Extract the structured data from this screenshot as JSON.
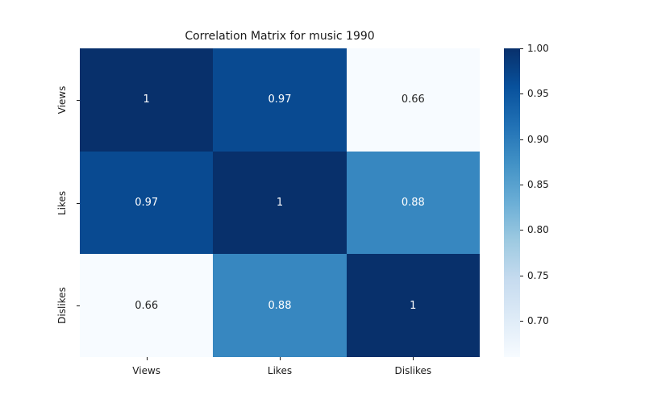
{
  "chart_data": {
    "type": "heatmap",
    "title": "Correlation Matrix for music 1990",
    "categories": [
      "Views",
      "Likes",
      "Dislikes"
    ],
    "matrix": [
      [
        1,
        0.97,
        0.66
      ],
      [
        0.97,
        1,
        0.88
      ],
      [
        0.66,
        0.88,
        1
      ]
    ],
    "cell_labels": [
      [
        "1",
        "0.97",
        "0.66"
      ],
      [
        "0.97",
        "1",
        "0.88"
      ],
      [
        "0.66",
        "0.88",
        "1"
      ]
    ],
    "cell_colors": [
      [
        "#08306b",
        "#094a91",
        "#f7fbff"
      ],
      [
        "#094a91",
        "#08306b",
        "#3787c0"
      ],
      [
        "#f7fbff",
        "#3787c0",
        "#08306b"
      ]
    ],
    "cell_text_colors": [
      [
        "#ffffff",
        "#ffffff",
        "#262626"
      ],
      [
        "#ffffff",
        "#ffffff",
        "#ffffff"
      ],
      [
        "#262626",
        "#ffffff",
        "#ffffff"
      ]
    ],
    "colormap": "Blues",
    "vmin": 0.66,
    "vmax": 1.0,
    "colorbar_tick_values": [
      1.0,
      0.95,
      0.9,
      0.85,
      0.8,
      0.75,
      0.7
    ],
    "colorbar_tick_labels": [
      "1.00",
      "0.95",
      "0.90",
      "0.85",
      "0.80",
      "0.75",
      "0.70"
    ],
    "colormap_stops_bottom_to_top": [
      "#f7fbff",
      "#deebf7",
      "#c6dbef",
      "#9ecae1",
      "#6baed6",
      "#4292c6",
      "#2171b5",
      "#08519c",
      "#08306b"
    ],
    "legend_position": "right-colorbar",
    "grid": "off"
  }
}
